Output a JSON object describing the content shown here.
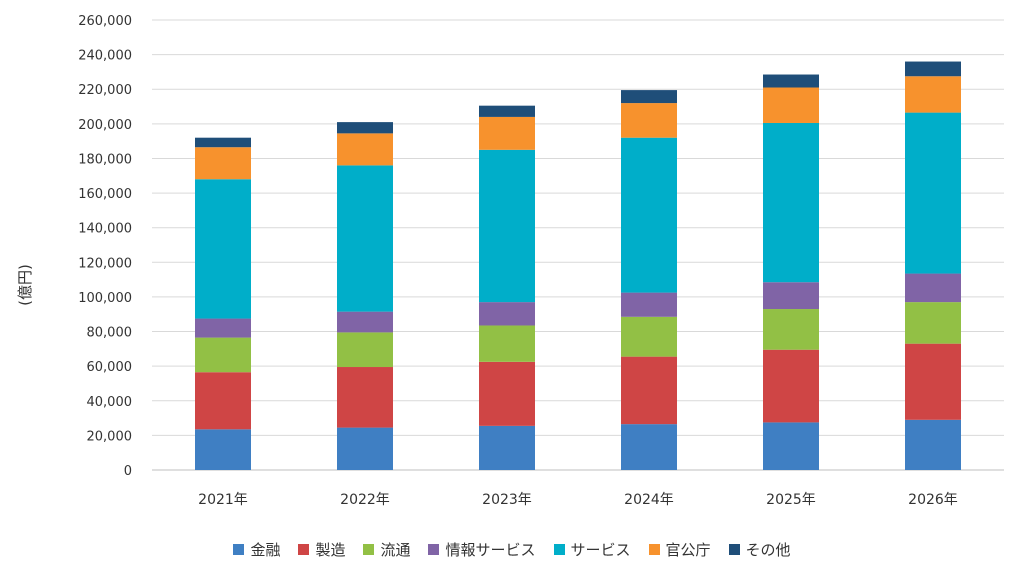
{
  "chart_data": {
    "type": "bar",
    "stacked": true,
    "title": "",
    "xlabel": "",
    "ylabel": "(億円)",
    "ylim": [
      0,
      260000
    ],
    "ytick_step": 20000,
    "yticks": [
      "0",
      "20,000",
      "40,000",
      "60,000",
      "80,000",
      "100,000",
      "120,000",
      "140,000",
      "160,000",
      "180,000",
      "200,000",
      "220,000",
      "240,000",
      "260,000"
    ],
    "categories": [
      "2021年",
      "2022年",
      "2023年",
      "2024年",
      "2025年",
      "2026年"
    ],
    "grid": true,
    "legend_position": "bottom",
    "series": [
      {
        "name": "金融",
        "color": "#3f7fc3",
        "values": [
          23500,
          24500,
          25500,
          26500,
          27500,
          29000
        ]
      },
      {
        "name": "製造",
        "color": "#cf4545",
        "values": [
          33000,
          35000,
          37000,
          39000,
          42000,
          44000
        ]
      },
      {
        "name": "流通",
        "color": "#92c045",
        "values": [
          20000,
          20000,
          21000,
          23000,
          23500,
          24000
        ]
      },
      {
        "name": "情報サービス",
        "color": "#8064a6",
        "values": [
          11000,
          12000,
          13500,
          14000,
          15500,
          16500
        ]
      },
      {
        "name": "サービス",
        "color": "#00aec9",
        "values": [
          80500,
          84500,
          88000,
          89500,
          92000,
          93000
        ]
      },
      {
        "name": "官公庁",
        "color": "#f7922d",
        "values": [
          18500,
          18500,
          19000,
          20000,
          20500,
          21000
        ]
      },
      {
        "name": "その他",
        "color": "#1f4e79",
        "values": [
          5500,
          6500,
          6500,
          7500,
          7500,
          8500
        ]
      }
    ]
  }
}
